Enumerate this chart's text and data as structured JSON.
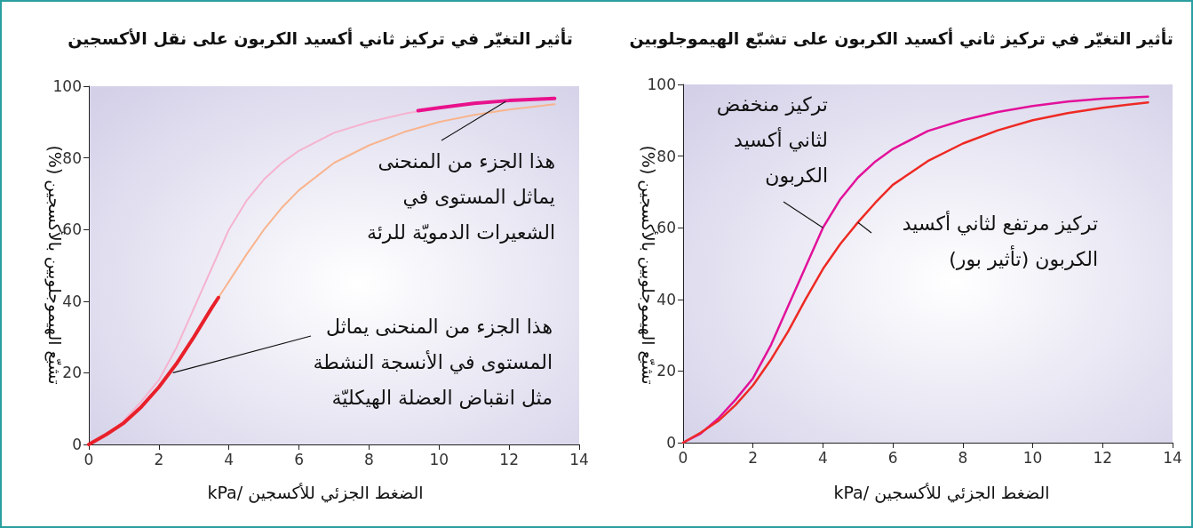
{
  "chart_data": [
    {
      "type": "line",
      "title": "تأثير التغيّر في تركيز ثاني أكسيد الكربون على نقل الأكسجين",
      "xlabel": "الضغط الجزئي للأكسجين /kPa",
      "ylabel": "تشبّع الهيموجلوبين بالأكسجين (%)",
      "xlim": [
        0,
        14
      ],
      "ylim": [
        0,
        100
      ],
      "xticks": [
        0,
        2,
        4,
        6,
        8,
        10,
        12,
        14
      ],
      "yticks": [
        0,
        20,
        40,
        60,
        80,
        100
      ],
      "grid": false,
      "marker": "none",
      "line_style": "solid",
      "series": [
        {
          "color": "#f5b3cf",
          "x": [
            0,
            0.5,
            1,
            1.5,
            2,
            2.5,
            3,
            3.5,
            4,
            4.5,
            5,
            5.5,
            6,
            7,
            8,
            9,
            10,
            11,
            12,
            13.3
          ],
          "values": [
            0,
            2.5,
            6.7,
            12,
            18,
            27,
            38,
            49,
            60,
            68,
            74,
            78.5,
            82,
            87,
            90,
            92.3,
            94,
            95.2,
            96,
            96.6
          ]
        },
        {
          "color": "#f8b48e",
          "x": [
            0,
            0.5,
            1,
            1.5,
            2,
            2.5,
            3,
            3.5,
            3.7,
            4,
            4.5,
            5,
            5.5,
            6,
            7,
            8,
            9,
            10,
            11,
            12,
            13.3
          ],
          "values": [
            0,
            2.8,
            6,
            10.5,
            16,
            22.5,
            30,
            38,
            41,
            45.5,
            53,
            60,
            66,
            71,
            78.6,
            83.5,
            87.2,
            90,
            92,
            93.5,
            95
          ]
        },
        {
          "color": "#e8202a",
          "x": [
            0,
            0.5,
            1,
            1.5,
            2,
            2.5,
            3,
            3.5,
            3.7
          ],
          "values": [
            0,
            2.8,
            6,
            10.5,
            16,
            22.5,
            30,
            38,
            41
          ]
        },
        {
          "color": "#e8128c",
          "x": [
            9.4,
            10,
            11,
            12,
            13.3
          ],
          "values": [
            93.2,
            94,
            95.2,
            96,
            96.6
          ]
        }
      ],
      "annotations": [
        {
          "text": "هذا الجزء من المنحنى\nيماثل المستوى في\nالشعيرات الدمويّة للرئة",
          "x": 11.9,
          "y": 95.7
        },
        {
          "text": "هذا الجزء من المنحنى يماثل\nالمستوى في الأنسجة النشطة\nمثل انقباض العضلة الهيكليّة",
          "x": 2.4,
          "y": 20
        }
      ]
    },
    {
      "type": "line",
      "title": "تأثير التغيّر في تركيز ثاني أكسيد الكربون على تشبّع الهيموجلوبين",
      "xlabel": "الضغط الجزئي للأكسجين /kPa",
      "ylabel": "تشبّع الهيموجلوبين بالأكسجين (%)",
      "xlim": [
        0,
        14
      ],
      "ylim": [
        0,
        100
      ],
      "xticks": [
        0,
        2,
        4,
        6,
        8,
        10,
        12,
        14
      ],
      "yticks": [
        0,
        20,
        40,
        60,
        80,
        100
      ],
      "grid": false,
      "marker": "none",
      "line_style": "solid",
      "series": [
        {
          "color": "#e2119a",
          "x": [
            0,
            0.5,
            1,
            1.5,
            2,
            2.5,
            3,
            3.5,
            4,
            4.5,
            5,
            5.5,
            6,
            7,
            8,
            9,
            10,
            11,
            12,
            13.3
          ],
          "values": [
            0,
            2.5,
            6.7,
            12,
            18,
            27,
            38,
            49,
            60,
            68,
            74,
            78.5,
            82,
            87,
            90,
            92.3,
            94,
            95.2,
            96,
            96.6
          ]
        },
        {
          "color": "#ee2a24",
          "x": [
            0,
            0.5,
            1,
            1.5,
            2,
            2.5,
            3,
            3.5,
            4,
            4.5,
            5,
            5.5,
            6,
            7,
            8,
            9,
            10,
            11,
            12,
            13.3
          ],
          "values": [
            0,
            2.8,
            6,
            10.5,
            16,
            23,
            31,
            40,
            48.5,
            55.5,
            61.5,
            67,
            72,
            78.6,
            83.5,
            87.2,
            90,
            92,
            93.5,
            95
          ]
        }
      ],
      "annotations": [
        {
          "text": "تركيز منخفض\nلثاني أكسيد\nالكربون",
          "x": 4,
          "y": 60
        },
        {
          "text": "تركيز مرتفع لثاني أكسيد\nالكربون (تأثير بور)",
          "x": 5,
          "y": 61.5
        }
      ]
    }
  ]
}
